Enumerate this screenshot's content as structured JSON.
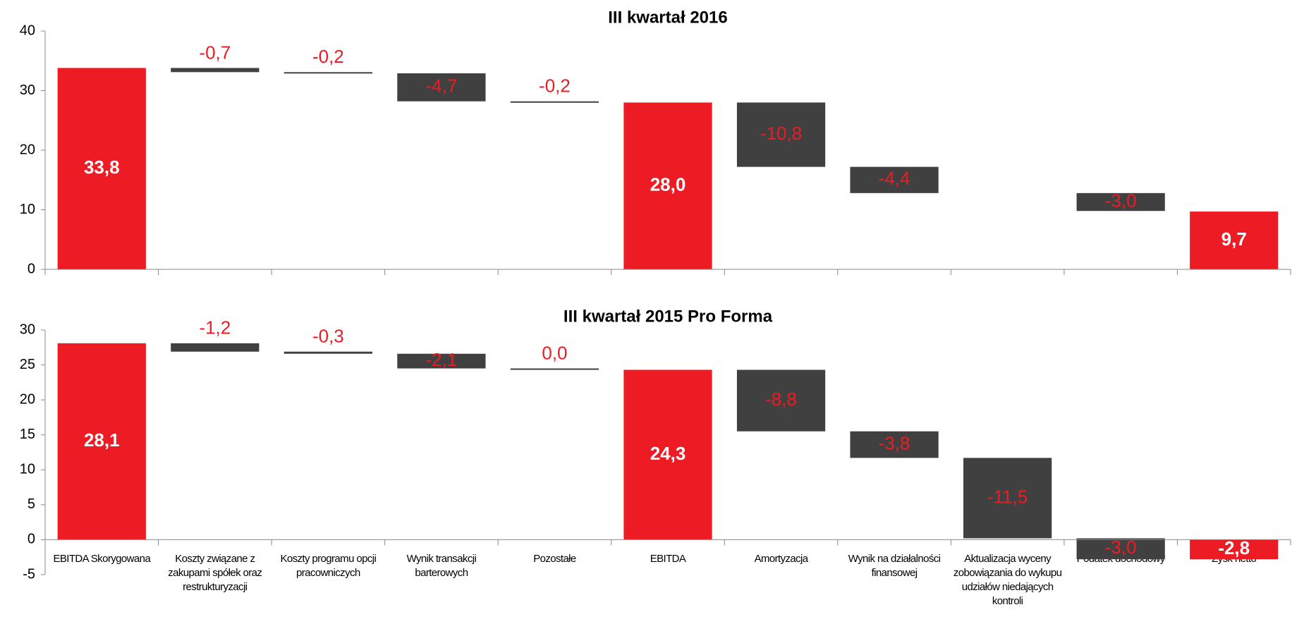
{
  "chart_data": [
    {
      "type": "waterfall",
      "title": "III kwartał 2016",
      "categories": [
        null,
        null,
        null,
        null,
        null,
        null,
        null,
        null,
        null,
        null,
        null
      ],
      "values": [
        33.8,
        -0.7,
        -0.2,
        -4.7,
        -0.2,
        28.0,
        -10.8,
        -4.4,
        null,
        -3.0,
        9.7
      ],
      "value_labels": [
        "33,8",
        "-0,7",
        "-0,2",
        "-4,7",
        "-0,2",
        "28,0",
        "-10,8",
        "-4,4",
        null,
        "-3,0",
        "9,7"
      ],
      "colors": [
        "#ed1c24",
        "#404040",
        "#404040",
        "#404040",
        "#404040",
        "#ed1c24",
        "#404040",
        "#404040",
        "#404040",
        "#404040",
        "#ed1c24"
      ],
      "total_color": "#ed1c24",
      "ylim": [
        0,
        40
      ],
      "yticks": [
        0,
        10,
        20,
        30,
        40
      ],
      "grid": false
    },
    {
      "type": "waterfall",
      "title": "III kwartał 2015 Pro Forma",
      "categories": [
        "EBITDA Skorygowana",
        "Koszty związane z zakupami spółek oraz restrukturyzacji",
        "Koszty programu opcji pracowniczych",
        "Wynik transakcji barterowych",
        "Pozostałe",
        "EBITDA",
        "Amortyzacja",
        "Wynik na działalności finansowej",
        "Aktualizacja wyceny zobowiązania do wykupu udziałów niedających kontroli",
        "Podatek dochodowy",
        "Zysk netto"
      ],
      "values": [
        28.1,
        -1.2,
        -0.3,
        -2.1,
        0.0,
        24.3,
        -8.8,
        -3.8,
        -11.5,
        -3.0,
        -2.8
      ],
      "value_labels": [
        "28,1",
        "-1,2",
        "-0,3",
        "-2,1",
        "0,0",
        "24,3",
        "-8,8",
        "-3,8",
        "-11,5",
        "-3,0",
        "-2,8"
      ],
      "colors": [
        "#ed1c24",
        "#404040",
        "#404040",
        "#404040",
        "#404040",
        "#ed1c24",
        "#404040",
        "#404040",
        "#404040",
        "#404040",
        "#ed1c24"
      ],
      "total_color": "#ed1c24",
      "ylim": [
        -5,
        30
      ],
      "yticks": [
        -5,
        0,
        5,
        10,
        15,
        20,
        25,
        30
      ],
      "grid": false
    }
  ]
}
